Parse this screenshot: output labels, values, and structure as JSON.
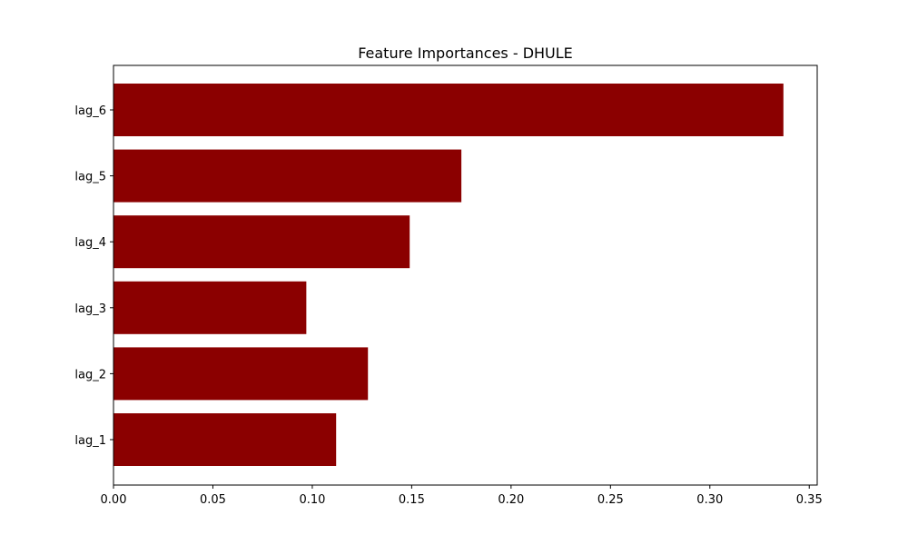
{
  "chart_data": {
    "type": "bar",
    "orientation": "horizontal",
    "title": "Feature Importances - DHULE",
    "xlabel": "",
    "ylabel": "",
    "categories": [
      "lag_1",
      "lag_2",
      "lag_3",
      "lag_4",
      "lag_5",
      "lag_6"
    ],
    "values": [
      0.112,
      0.128,
      0.097,
      0.149,
      0.175,
      0.337
    ],
    "xlim": [
      0.0,
      0.354
    ],
    "xticks": [
      "0.00",
      "0.05",
      "0.10",
      "0.15",
      "0.20",
      "0.25",
      "0.30",
      "0.35"
    ],
    "bar_color": "#8b0000",
    "grid": false,
    "legend": "none"
  }
}
